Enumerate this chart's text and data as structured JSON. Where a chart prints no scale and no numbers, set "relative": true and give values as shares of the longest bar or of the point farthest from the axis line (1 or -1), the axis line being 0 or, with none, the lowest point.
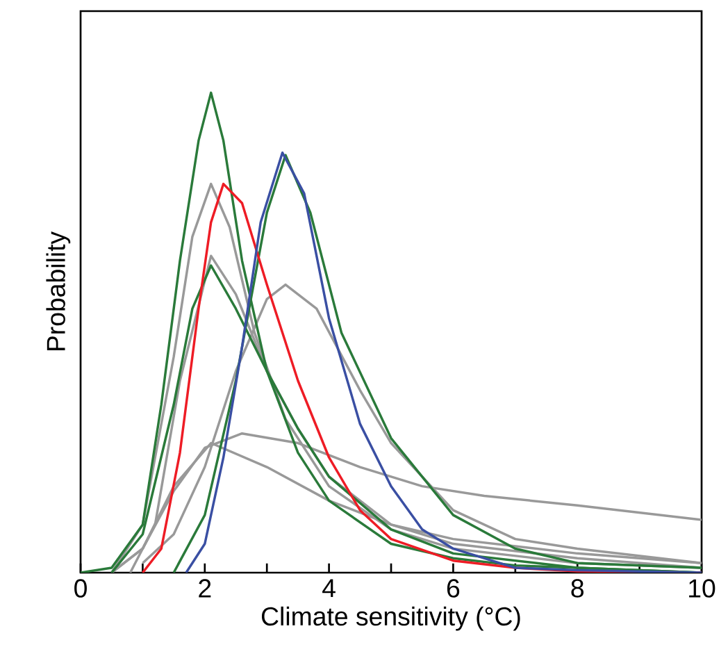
{
  "chart_data": {
    "type": "line",
    "relative": true,
    "xlabel": "Climate sensitivity (°C)",
    "ylabel": "Probability",
    "xlim": [
      0,
      10
    ],
    "xticks": [
      0,
      {
        "value": 1,
        "label": null
      },
      2,
      {
        "value": 3,
        "label": null
      },
      4,
      {
        "value": 5,
        "label": null
      },
      6,
      {
        "value": 7,
        "label": null
      },
      8,
      {
        "value": 9,
        "label": null
      },
      10
    ],
    "grid": false,
    "marker": "none",
    "series": [
      {
        "color": "#999999",
        "x": [
          0.5,
          1,
          1.5,
          1.8,
          2.1,
          2.4,
          2.8,
          3.3,
          4,
          5,
          6,
          8,
          10
        ],
        "values": [
          0,
          0.1,
          0.45,
          0.7,
          0.81,
          0.72,
          0.5,
          0.32,
          0.18,
          0.09,
          0.05,
          0.02,
          0.01
        ]
      },
      {
        "color": "#999999",
        "x": [
          1,
          1.5,
          2,
          2.5,
          3,
          3.3,
          3.8,
          4.5,
          5,
          6,
          7,
          8,
          10
        ],
        "values": [
          0.02,
          0.08,
          0.22,
          0.42,
          0.57,
          0.6,
          0.55,
          0.38,
          0.27,
          0.13,
          0.07,
          0.05,
          0.02
        ]
      },
      {
        "color": "#999999",
        "x": [
          0.5,
          1,
          1.5,
          2,
          2.6,
          3.5,
          4.5,
          5.5,
          6.5,
          8,
          10
        ],
        "values": [
          0,
          0.05,
          0.17,
          0.26,
          0.29,
          0.27,
          0.22,
          0.18,
          0.16,
          0.14,
          0.11
        ]
      },
      {
        "color": "#999999",
        "x": [
          0.5,
          1,
          1.5,
          2.1,
          3,
          4,
          5,
          6,
          8,
          10
        ],
        "values": [
          0,
          0.05,
          0.18,
          0.27,
          0.22,
          0.15,
          0.1,
          0.07,
          0.04,
          0.02
        ]
      },
      {
        "color": "#999999",
        "x": [
          0.8,
          1.2,
          1.6,
          2.1,
          2.5,
          3,
          3.5,
          4,
          5,
          6,
          8,
          10
        ],
        "values": [
          0,
          0.1,
          0.4,
          0.66,
          0.58,
          0.42,
          0.3,
          0.2,
          0.1,
          0.06,
          0.03,
          0.01
        ]
      },
      {
        "color": "#2a7a3a",
        "x": [
          0,
          0.5,
          1,
          1.3,
          1.6,
          1.9,
          2.1,
          2.3,
          2.6,
          3,
          3.5,
          4,
          5,
          6,
          7,
          8,
          10
        ],
        "values": [
          0,
          0.01,
          0.1,
          0.35,
          0.65,
          0.9,
          1.0,
          0.9,
          0.65,
          0.42,
          0.25,
          0.15,
          0.06,
          0.03,
          0.015,
          0.01,
          0
        ]
      },
      {
        "color": "#2a7a3a",
        "x": [
          0.5,
          1,
          1.5,
          1.8,
          2.1,
          2.5,
          3,
          3.5,
          4,
          5,
          6,
          8,
          10
        ],
        "values": [
          0,
          0.08,
          0.35,
          0.55,
          0.64,
          0.55,
          0.42,
          0.3,
          0.2,
          0.09,
          0.04,
          0.01,
          0
        ]
      },
      {
        "color": "#2a7a3a",
        "x": [
          1.5,
          2,
          2.5,
          3,
          3.3,
          3.7,
          4.2,
          5,
          6,
          7,
          8,
          10
        ],
        "values": [
          0,
          0.12,
          0.4,
          0.75,
          0.87,
          0.75,
          0.5,
          0.28,
          0.12,
          0.05,
          0.02,
          0.01
        ]
      },
      {
        "color": "#ee1c25",
        "x": [
          1,
          1.3,
          1.6,
          1.9,
          2.1,
          2.3,
          2.6,
          3,
          3.5,
          4,
          4.5,
          5,
          6,
          7,
          8,
          10
        ],
        "values": [
          0,
          0.05,
          0.25,
          0.55,
          0.73,
          0.81,
          0.77,
          0.6,
          0.4,
          0.24,
          0.13,
          0.07,
          0.025,
          0.01,
          0.003,
          0
        ]
      },
      {
        "color": "#3a4fa3",
        "x": [
          1.7,
          2,
          2.3,
          2.6,
          2.9,
          3.25,
          3.6,
          4,
          4.5,
          5,
          5.5,
          6,
          7,
          8,
          10
        ],
        "values": [
          0,
          0.06,
          0.24,
          0.47,
          0.73,
          0.875,
          0.79,
          0.53,
          0.31,
          0.18,
          0.09,
          0.05,
          0.01,
          0.005,
          0
        ]
      }
    ]
  }
}
